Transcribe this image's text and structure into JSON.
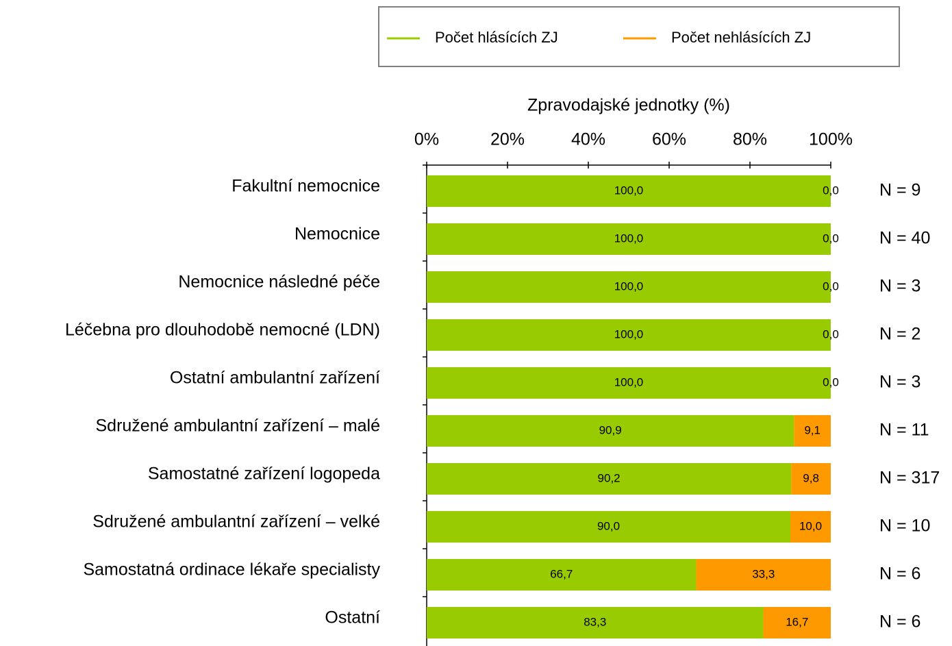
{
  "chart_data": {
    "type": "stacked_barh",
    "x_label": "Zpravodajské jednotky (%)",
    "categories": [
      "Fakultní nemocnice",
      "Nemocnice",
      "Nemocnice následné péče",
      "Léčebna pro dlouhodobě nemocné (LDN)",
      "Ostatní ambulantní zařízení",
      "Sdružené ambulantní zařízení – malé",
      "Samostatné zařízení logopeda",
      "Sdružené ambulantní zařízení – velké",
      "Samostatná ordinace lékaře specialisty",
      "Ostatní"
    ],
    "series": [
      {
        "name": "Počet hlásících ZJ",
        "color": "#99cc00",
        "values": [
          100,
          100,
          100,
          100,
          100,
          90.9,
          90.2,
          90,
          66.7,
          83.3
        ],
        "value_labels": [
          "100,0",
          "100,0",
          "100,0",
          "100,0",
          "100,0",
          "90,9",
          "90,2",
          "90,0",
          "66,7",
          "83,3"
        ]
      },
      {
        "name": "Počet nehlásících ZJ",
        "color": "#ff9900",
        "values": [
          0,
          0,
          0,
          0,
          0,
          9.1,
          9.8,
          10,
          33.3,
          16.7
        ],
        "value_labels": [
          "0,0",
          "0,0",
          "0,0",
          "0,0",
          "0,0",
          "9,1",
          "9,8",
          "10,0",
          "33,3",
          "16,7"
        ]
      }
    ],
    "annotations": [
      "N = 9",
      "N = 40",
      "N = 3",
      "N = 2",
      "N = 3",
      "N = 11",
      "N = 317",
      "N = 10",
      "N = 6",
      "N = 6"
    ],
    "xlim": [
      0,
      100
    ],
    "xticks": [
      {
        "value": 0,
        "label": "0%"
      },
      {
        "value": 20,
        "label": "20%"
      },
      {
        "value": 40,
        "label": "40%"
      },
      {
        "value": 60,
        "label": "60%"
      },
      {
        "value": 80,
        "label": "80%"
      },
      {
        "value": 100,
        "label": "100%"
      }
    ],
    "legend": "top"
  }
}
